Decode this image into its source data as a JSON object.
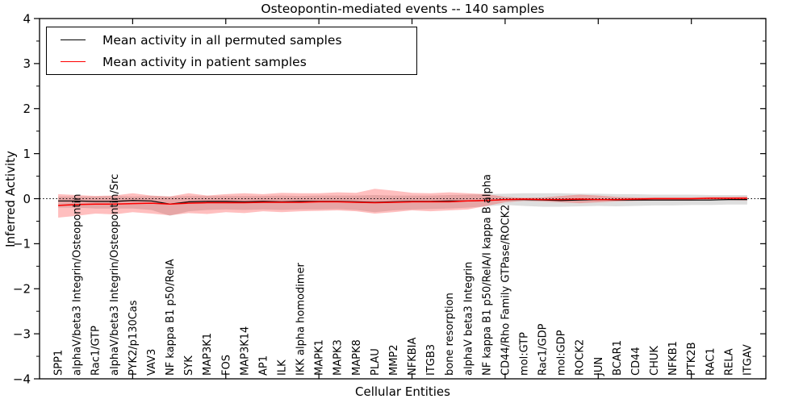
{
  "chart_data": {
    "type": "line",
    "title": "Osteopontin-mediated events -- 140 samples",
    "xlabel": "Cellular Entities",
    "ylabel": "Inferred Activity",
    "xlim": [
      0,
      39
    ],
    "ylim": [
      -4,
      4
    ],
    "yticks": [
      4,
      3,
      2,
      1,
      0,
      -1,
      -2,
      -3,
      -4
    ],
    "ytick_labels": [
      "4",
      "3",
      "2",
      "1",
      "0",
      "−1",
      "−2",
      "−3",
      "−4"
    ],
    "y_minor_tick_step": 0.5,
    "xticks": [
      5,
      10,
      15,
      20,
      25,
      30,
      35
    ],
    "grid": false,
    "zero_reference_line": {
      "y": 0,
      "style": "dotted",
      "color": "#000000"
    },
    "legend": {
      "position": "upper-left",
      "entries": [
        {
          "label": "Mean activity in all permuted samples",
          "color": "#000000"
        },
        {
          "label": "Mean activity in patient samples",
          "color": "#ff0000"
        }
      ]
    },
    "categories": [
      "SPP1",
      "alphaV/beta3 Integrin/Osteopontin",
      "Rac1/GTP",
      "alphaV/beta3 Integrin/Osteopontin/Src",
      "PYK2/p130Cas",
      "VAV3",
      "NF kappa B1 p50/RelA",
      "SYK",
      "MAP3K1",
      "FOS",
      "MAP3K14",
      "AP1",
      "ILK",
      "IKK alpha homodimer",
      "MAPK1",
      "MAPK3",
      "MAPK8",
      "PLAU",
      "MMP2",
      "NFKBIA",
      "ITGB3",
      "bone resorption",
      "alphaV beta3 Integrin",
      "NF kappa B1 p50/RelA/I kappa B alpha",
      "CD44/Rho Family GTPase/ROCK2",
      "mol:GTP",
      "Rac1/GDP",
      "mol:GDP",
      "ROCK2",
      "JUN",
      "BCAR1",
      "CD44",
      "CHUK",
      "NFKB1",
      "PTK2B",
      "RAC1",
      "RELA",
      "ITGAV"
    ],
    "series": [
      {
        "name": "Mean activity in all permuted samples",
        "color": "#000000",
        "line_width": 1.2,
        "values": [
          -0.05,
          -0.05,
          -0.06,
          -0.06,
          -0.04,
          -0.05,
          -0.12,
          -0.07,
          -0.06,
          -0.06,
          -0.07,
          -0.06,
          -0.07,
          -0.06,
          -0.06,
          -0.06,
          -0.07,
          -0.08,
          -0.07,
          -0.06,
          -0.06,
          -0.05,
          -0.05,
          -0.04,
          -0.02,
          -0.02,
          -0.03,
          -0.04,
          -0.03,
          -0.02,
          -0.03,
          -0.03,
          -0.03,
          -0.03,
          -0.03,
          -0.03,
          -0.02,
          -0.02
        ]
      },
      {
        "name": "Mean activity in patient samples",
        "color": "#ff0000",
        "line_width": 1.5,
        "values": [
          -0.15,
          -0.13,
          -0.12,
          -0.12,
          -0.11,
          -0.1,
          -0.12,
          -0.1,
          -0.09,
          -0.09,
          -0.09,
          -0.08,
          -0.08,
          -0.08,
          -0.07,
          -0.07,
          -0.08,
          -0.09,
          -0.08,
          -0.07,
          -0.07,
          -0.07,
          -0.05,
          -0.04,
          -0.02,
          -0.01,
          -0.02,
          -0.02,
          -0.01,
          -0.02,
          -0.02,
          -0.01,
          0.0,
          0.0,
          0.0,
          0.01,
          0.01,
          0.01
        ]
      }
    ],
    "bands": [
      {
        "name": "permuted-samples-std-band",
        "color": "#000000",
        "opacity": 0.13,
        "upper": [
          0.05,
          0.05,
          0.05,
          0.06,
          0.05,
          0.06,
          0.05,
          0.06,
          0.06,
          0.06,
          0.06,
          0.06,
          0.07,
          0.06,
          0.07,
          0.07,
          0.07,
          0.08,
          0.07,
          0.07,
          0.07,
          0.08,
          0.09,
          0.1,
          0.11,
          0.12,
          0.12,
          0.12,
          0.11,
          0.11,
          0.1,
          0.1,
          0.09,
          0.09,
          0.09,
          0.08,
          0.08,
          0.08
        ],
        "lower": [
          -0.2,
          -0.2,
          -0.22,
          -0.22,
          -0.22,
          -0.25,
          -0.38,
          -0.28,
          -0.25,
          -0.24,
          -0.25,
          -0.24,
          -0.25,
          -0.24,
          -0.24,
          -0.23,
          -0.25,
          -0.3,
          -0.26,
          -0.24,
          -0.23,
          -0.22,
          -0.2,
          -0.17,
          -0.14,
          -0.16,
          -0.18,
          -0.18,
          -0.17,
          -0.16,
          -0.17,
          -0.16,
          -0.15,
          -0.15,
          -0.14,
          -0.14,
          -0.13,
          -0.13
        ]
      },
      {
        "name": "patient-samples-std-band",
        "color": "#ff0000",
        "opacity": 0.25,
        "upper": [
          0.1,
          0.08,
          0.06,
          0.07,
          0.12,
          0.07,
          0.05,
          0.12,
          0.07,
          0.1,
          0.12,
          0.1,
          0.13,
          0.12,
          0.12,
          0.14,
          0.13,
          0.22,
          0.18,
          0.13,
          0.12,
          0.14,
          0.12,
          0.1,
          0.04,
          0.02,
          0.03,
          0.06,
          0.09,
          0.07,
          0.04,
          0.03,
          0.03,
          0.03,
          0.03,
          0.04,
          0.04,
          0.05
        ],
        "lower": [
          -0.42,
          -0.38,
          -0.33,
          -0.35,
          -0.3,
          -0.33,
          -0.37,
          -0.32,
          -0.34,
          -0.3,
          -0.32,
          -0.28,
          -0.3,
          -0.28,
          -0.27,
          -0.26,
          -0.28,
          -0.33,
          -0.3,
          -0.26,
          -0.28,
          -0.26,
          -0.24,
          -0.16,
          -0.08,
          -0.05,
          -0.06,
          -0.08,
          -0.1,
          -0.08,
          -0.06,
          -0.05,
          -0.04,
          -0.04,
          -0.04,
          -0.03,
          -0.03,
          -0.04
        ]
      }
    ]
  }
}
